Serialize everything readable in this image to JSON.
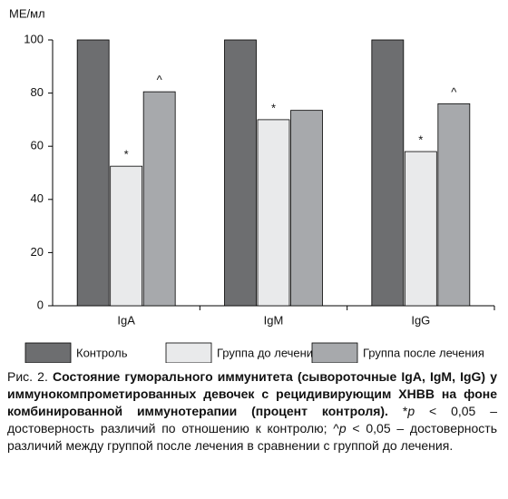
{
  "chart_data": {
    "type": "bar",
    "y_label": "МЕ/мл",
    "categories": [
      "IgA",
      "IgM",
      "IgG"
    ],
    "series": [
      {
        "name": "Контроль",
        "color": "#6d6e70",
        "values": [
          100,
          100,
          100
        ]
      },
      {
        "name": "Группа до лечения",
        "color": "#e9eaeb",
        "values": [
          52.5,
          70,
          58
        ],
        "annotations": [
          "*",
          "*",
          "*"
        ]
      },
      {
        "name": "Группа после лечения",
        "color": "#a7a9ac",
        "values": [
          80.5,
          73.5,
          76
        ],
        "annotations": [
          "^",
          null,
          "^"
        ]
      }
    ],
    "ylim": [
      0,
      100
    ],
    "yticks": [
      0,
      20,
      40,
      60,
      80,
      100
    ],
    "legend": "bottom"
  },
  "caption": {
    "label": "Рис. 2.",
    "title": "Состояние гуморального иммунитета (сывороточные IgA, IgM, IgG) у иммунокомпрометированных девочек с рецидивирующим ХНВВ на фоне комбинированной иммунотерапии (процент контроля).",
    "note": [
      "*",
      "p",
      " < 0,05 – достоверность различий по отношению к контролю; ^",
      "p",
      " < 0,05 – достоверность различий между группой после лечения в сравнении с группой до лечения."
    ]
  }
}
